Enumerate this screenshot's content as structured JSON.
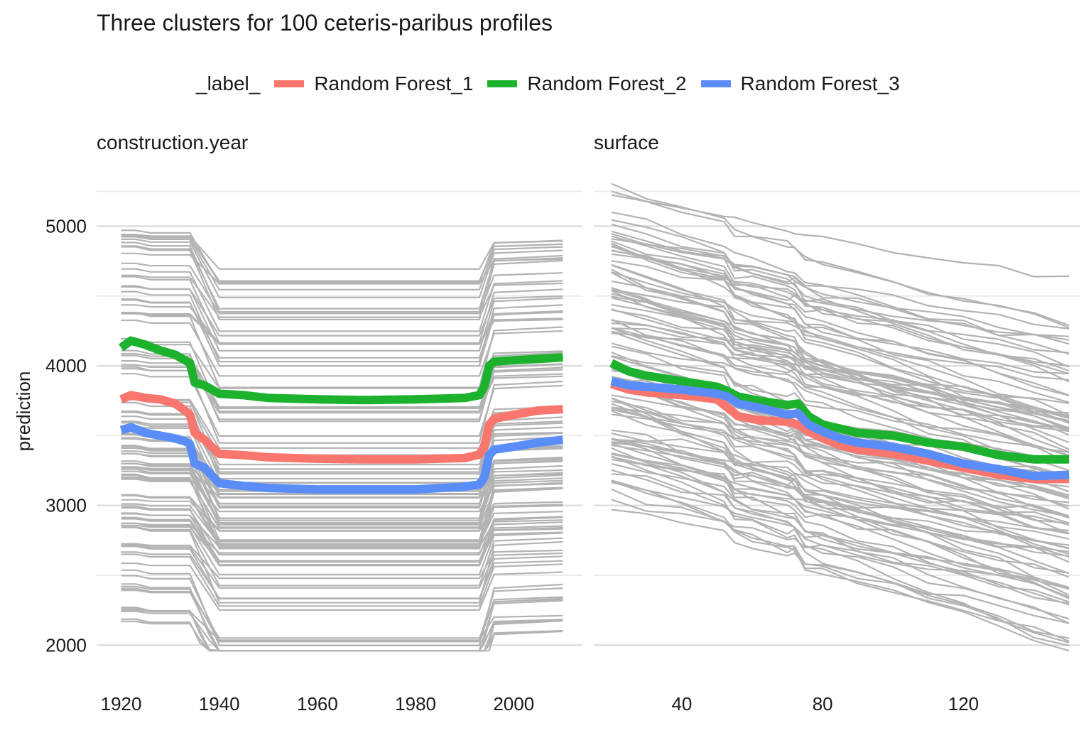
{
  "chart_data": {
    "type": "line",
    "title": "Three clusters for 100 ceteris-paribus profiles",
    "ylabel": "prediction",
    "ylim": [
      1900,
      5450
    ],
    "y_ticks": [
      2000,
      3000,
      4000,
      5000
    ],
    "grid": true,
    "legend": {
      "title": "_label_",
      "placement": "top",
      "entries": [
        {
          "name": "Random Forest_1",
          "color": "#F8766D"
        },
        {
          "name": "Random Forest_2",
          "color": "#1DB22E"
        },
        {
          "name": "Random Forest_3",
          "color": "#5A8DF8"
        }
      ]
    },
    "background_color": "#B3B3B3",
    "panels": [
      {
        "strip": "construction.year",
        "xlim": [
          1915,
          2014
        ],
        "x_ticks": [
          1920,
          1940,
          1960,
          1980,
          2000
        ],
        "background_profiles": {
          "x": [
            1920,
            1923,
            1926,
            1929,
            1932,
            1934,
            1935,
            1936,
            1938,
            1940,
            1950,
            1960,
            1970,
            1980,
            1990,
            1993,
            1994,
            1995,
            1996,
            2000,
            2005,
            2010
          ],
          "count": 100
        },
        "series": [
          {
            "name": "Random Forest_1",
            "x": [
              1920,
              1922,
              1925,
              1928,
              1931,
              1933,
              1934,
              1935,
              1937,
              1940,
              1945,
              1950,
              1960,
              1970,
              1980,
              1990,
              1993,
              1994,
              1995,
              1996,
              2000,
              2005,
              2010
            ],
            "y": [
              3760,
              3790,
              3770,
              3760,
              3730,
              3680,
              3650,
              3520,
              3470,
              3370,
              3360,
              3345,
              3335,
              3330,
              3330,
              3340,
              3365,
              3420,
              3580,
              3620,
              3650,
              3680,
              3690
            ]
          },
          {
            "name": "Random Forest_2",
            "x": [
              1920,
              1922,
              1925,
              1928,
              1931,
              1933,
              1934,
              1935,
              1937,
              1940,
              1945,
              1950,
              1960,
              1970,
              1980,
              1990,
              1993,
              1994,
              1995,
              1996,
              2000,
              2005,
              2010
            ],
            "y": [
              4130,
              4180,
              4150,
              4110,
              4080,
              4040,
              4020,
              3880,
              3860,
              3800,
              3790,
              3770,
              3760,
              3755,
              3760,
              3770,
              3790,
              3850,
              4000,
              4030,
              4040,
              4050,
              4060
            ]
          },
          {
            "name": "Random Forest_3",
            "x": [
              1920,
              1922,
              1925,
              1928,
              1931,
              1933,
              1934,
              1935,
              1937,
              1940,
              1945,
              1950,
              1960,
              1970,
              1980,
              1990,
              1993,
              1994,
              1995,
              1996,
              2000,
              2005,
              2010
            ],
            "y": [
              3540,
              3560,
              3520,
              3500,
              3480,
              3460,
              3440,
              3300,
              3270,
              3160,
              3140,
              3125,
              3115,
              3115,
              3115,
              3135,
              3150,
              3200,
              3360,
              3400,
              3420,
              3450,
              3470
            ]
          }
        ]
      },
      {
        "strip": "surface",
        "xlim": [
          15,
          153
        ],
        "x_ticks": [
          40,
          80,
          120
        ],
        "background_profiles": {
          "x": [
            20,
            30,
            40,
            52,
            55,
            60,
            70,
            72,
            75,
            80,
            90,
            100,
            110,
            120,
            130,
            140,
            150
          ],
          "count": 100
        },
        "series": [
          {
            "name": "Random Forest_1",
            "x": [
              20,
              25,
              30,
              40,
              50,
              53,
              56,
              62,
              70,
              73,
              76,
              80,
              85,
              90,
              100,
              110,
              120,
              130,
              140,
              150
            ],
            "y": [
              3870,
              3830,
              3810,
              3790,
              3760,
              3700,
              3640,
              3610,
              3600,
              3580,
              3530,
              3480,
              3430,
              3400,
              3370,
              3320,
              3270,
              3220,
              3190,
              3190
            ]
          },
          {
            "name": "Random Forest_2",
            "x": [
              20,
              25,
              30,
              40,
              50,
              53,
              56,
              62,
              70,
              73,
              76,
              80,
              85,
              90,
              100,
              110,
              120,
              130,
              140,
              150
            ],
            "y": [
              4020,
              3960,
              3930,
              3890,
              3850,
              3820,
              3780,
              3750,
              3720,
              3730,
              3640,
              3580,
              3550,
              3520,
              3500,
              3450,
              3420,
              3360,
              3330,
              3330
            ]
          },
          {
            "name": "Random Forest_3",
            "x": [
              20,
              25,
              30,
              40,
              50,
              53,
              56,
              62,
              70,
              73,
              76,
              80,
              85,
              90,
              100,
              110,
              120,
              130,
              140,
              150
            ],
            "y": [
              3890,
              3860,
              3850,
              3830,
              3800,
              3780,
              3730,
              3700,
              3650,
              3660,
              3580,
              3530,
              3480,
              3450,
              3420,
              3370,
              3300,
              3260,
              3210,
              3220
            ]
          }
        ]
      }
    ]
  }
}
